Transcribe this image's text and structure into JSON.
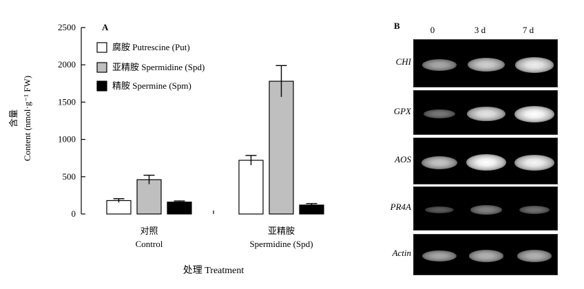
{
  "panel_a_letter": "A",
  "panel_b_letter": "B",
  "chart_data": {
    "type": "bar",
    "ylabel_cn": "含量",
    "ylabel_en": "Content (nmol·g⁻¹ FW)",
    "xlabel": "处理 Treatment",
    "ylim": [
      0,
      2500
    ],
    "yticks": [
      0,
      500,
      1000,
      1500,
      2000,
      2500
    ],
    "categories": [
      {
        "cn": "对照",
        "en": "Control"
      },
      {
        "cn": "亚精胺",
        "en": "Spermidine (Spd)"
      }
    ],
    "series": [
      {
        "name": "腐胺 Putrescine (Put)",
        "color": "#ffffff",
        "values": [
          180,
          720
        ],
        "errors": [
          25,
          65
        ]
      },
      {
        "name": "亚精胺 Spermidine (Spd)",
        "color": "#bfbfbf",
        "values": [
          460,
          1780
        ],
        "errors": [
          60,
          210
        ]
      },
      {
        "name": "精胺 Spermine (Spm)",
        "color": "#000000",
        "values": [
          160,
          120
        ],
        "errors": [
          15,
          20
        ]
      }
    ]
  },
  "gel": {
    "lanes": [
      "0",
      "3 d",
      "7 d"
    ],
    "genes": [
      {
        "name": "CHI",
        "intensity": [
          0.55,
          0.75,
          0.9
        ]
      },
      {
        "name": "GPX",
        "intensity": [
          0.3,
          0.85,
          1.0
        ]
      },
      {
        "name": "AOS",
        "intensity": [
          0.7,
          1.0,
          0.95
        ]
      },
      {
        "name": "PR4A",
        "intensity": [
          0.15,
          0.35,
          0.25
        ]
      },
      {
        "name": "Actin",
        "intensity": [
          0.55,
          0.6,
          0.6
        ]
      }
    ]
  }
}
